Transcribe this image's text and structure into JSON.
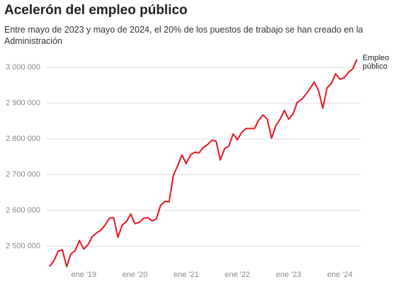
{
  "chart_data": {
    "type": "line",
    "title": "Acelerón del empleo público",
    "subtitle": "Entre mayo de 2023 y mayo de 2024, el 20% de los puestos de trabajo se han creado en la Administración",
    "categories": [
      null,
      null,
      null,
      null,
      null,
      null,
      null,
      null,
      "ene '19",
      null,
      null,
      null,
      null,
      null,
      null,
      null,
      null,
      null,
      null,
      null,
      "ene '20",
      null,
      null,
      null,
      null,
      null,
      null,
      null,
      null,
      null,
      null,
      null,
      "ene '21",
      null,
      null,
      null,
      null,
      null,
      null,
      null,
      null,
      null,
      null,
      null,
      "ene '22",
      null,
      null,
      null,
      null,
      null,
      null,
      null,
      null,
      null,
      null,
      null,
      "ene '23",
      null,
      null,
      null,
      null,
      null,
      null,
      null,
      null,
      null,
      null,
      null,
      "ene '24",
      null,
      null,
      null,
      null
    ],
    "series": [
      {
        "name": "Empleo público",
        "color": "#e8141c",
        "values": [
          2443000,
          2459000,
          2486000,
          2490000,
          2443000,
          2478000,
          2488000,
          2516000,
          2492000,
          2504000,
          2527000,
          2537000,
          2545000,
          2559000,
          2578000,
          2580000,
          2525000,
          2559000,
          2569000,
          2590000,
          2563000,
          2567000,
          2578000,
          2580000,
          2571000,
          2576000,
          2614000,
          2625000,
          2624000,
          2698000,
          2725000,
          2755000,
          2731000,
          2755000,
          2763000,
          2761000,
          2776000,
          2784000,
          2796000,
          2794000,
          2741000,
          2773000,
          2780000,
          2814000,
          2798000,
          2818000,
          2829000,
          2829000,
          2829000,
          2853000,
          2867000,
          2855000,
          2802000,
          2837000,
          2855000,
          2880000,
          2855000,
          2869000,
          2902000,
          2910000,
          2924000,
          2941000,
          2959000,
          2935000,
          2886000,
          2943000,
          2955000,
          2982000,
          2967000,
          2971000,
          2986000,
          2996000,
          3023000
        ]
      }
    ],
    "ylim": [
      2430000,
      3030000
    ],
    "yticks": [
      {
        "value": 2500000,
        "label": "2 500 000"
      },
      {
        "value": 2600000,
        "label": "2 600 000"
      },
      {
        "value": 2700000,
        "label": "2 700 000"
      },
      {
        "value": 2800000,
        "label": "2 800 000"
      },
      {
        "value": 2900000,
        "label": "2 900 000"
      },
      {
        "value": 3000000,
        "label": "3 000 000"
      }
    ],
    "grid": true
  }
}
